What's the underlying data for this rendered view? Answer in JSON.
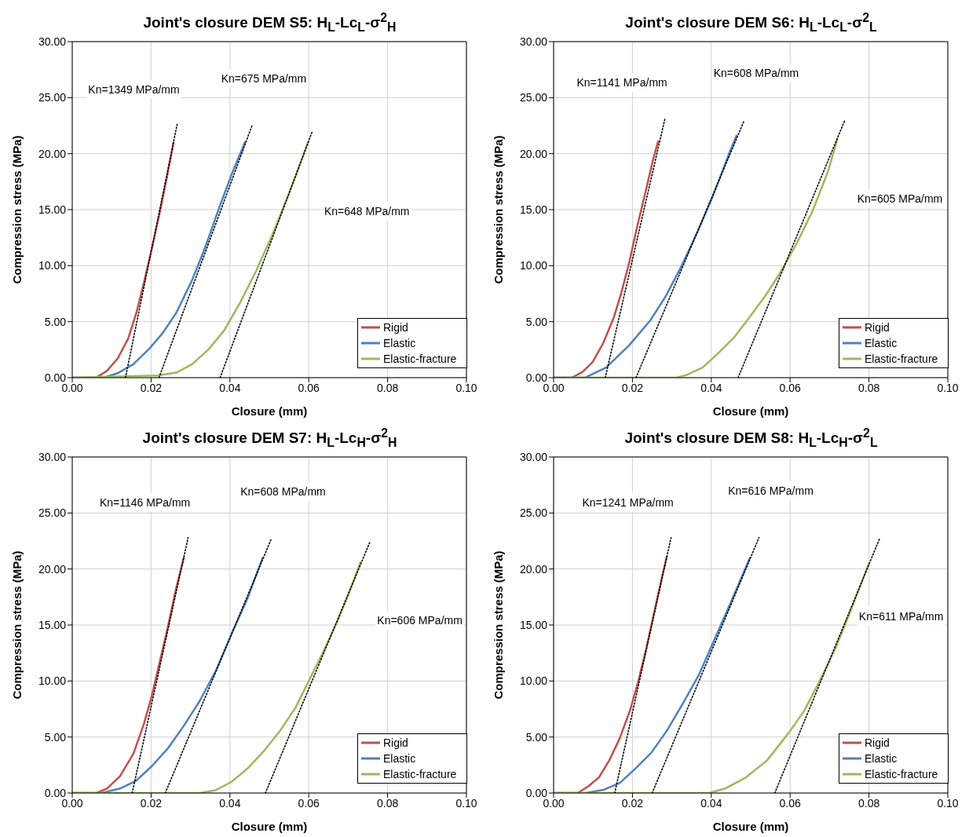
{
  "chart_data": [
    {
      "type": "line",
      "title": "Joint's closure DEM S5: H$_{L}$-Lc$_{L}$-σ$^{2}$$_{H}$",
      "xlabel": "Closure (mm)",
      "ylabel": "Compression stress (MPa)",
      "xlim": [
        0,
        0.1
      ],
      "ylim": [
        0,
        30
      ],
      "xticks": [
        {
          "value": 0,
          "label": "0.00"
        },
        {
          "value": 0.02,
          "label": "0.02"
        },
        {
          "value": 0.04,
          "label": "0.04"
        },
        {
          "value": 0.06,
          "label": "0.06"
        },
        {
          "value": 0.08,
          "label": "0.08"
        },
        {
          "value": 0.1,
          "label": "0.10"
        }
      ],
      "yticks": [
        {
          "value": 0,
          "label": "0.00"
        },
        {
          "value": 5,
          "label": "5.00"
        },
        {
          "value": 10,
          "label": "10.00"
        },
        {
          "value": 15,
          "label": "15.00"
        },
        {
          "value": 20,
          "label": "20.00"
        },
        {
          "value": 25,
          "label": "25.00"
        },
        {
          "value": 30,
          "label": "30.00"
        }
      ],
      "grid": true,
      "legend": "bottom right",
      "marker": "none",
      "series": [
        {
          "name": "Rigid",
          "color": "#c0504d",
          "x": [
            0,
            0.006,
            0.0088,
            0.0115,
            0.0142,
            0.0162,
            0.0182,
            0.0203,
            0.0223,
            0.0243,
            0.0257
          ],
          "values": [
            0,
            0,
            0.6,
            1.7,
            3.5,
            5.7,
            8.5,
            11.7,
            14.9,
            18.4,
            21
          ]
        },
        {
          "name": "Elastic",
          "color": "#4f81bd",
          "x": [
            0,
            0.008,
            0.0115,
            0.0155,
            0.0196,
            0.023,
            0.0264,
            0.0304,
            0.0338,
            0.0372,
            0.0405,
            0.0438
          ],
          "values": [
            0,
            0,
            0.4,
            1.2,
            2.6,
            4,
            5.8,
            8.7,
            11.7,
            15.1,
            18.2,
            21
          ]
        },
        {
          "name": "Elastic-fracture",
          "color": "#9bbb59",
          "x": [
            0,
            0.0216,
            0.0264,
            0.0304,
            0.0345,
            0.0385,
            0.0426,
            0.0466,
            0.0507,
            0.0547,
            0.0574,
            0.0598
          ],
          "values": [
            0,
            0.2,
            0.45,
            1.2,
            2.5,
            4.2,
            6.7,
            9.5,
            12.7,
            16.2,
            18.7,
            21
          ]
        },
        {
          "type": "line",
          "color": "#000000",
          "line_style": "dotted",
          "x": [
            0.0135,
            0.0266
          ],
          "values": [
            0,
            22.6
          ]
        },
        {
          "type": "line",
          "color": "#000000",
          "line_style": "dotted",
          "x": [
            0.022,
            0.0456
          ],
          "values": [
            0,
            22.5
          ]
        },
        {
          "type": "line",
          "color": "#000000",
          "line_style": "dotted",
          "x": [
            0.0375,
            0.0608
          ],
          "values": [
            0,
            21.9
          ]
        }
      ],
      "annotations": [
        "Kn=1349 MPa/mm",
        "Kn=675 MPa/mm",
        "Kn=648 MPa/mm"
      ]
    },
    {
      "type": "line",
      "title": "Joint's closure DEM S6: H$_{L}$-Lc$_{L}$-σ$^{2}$$_{L}$",
      "xlabel": "Closure (mm)",
      "ylabel": "Compression stress (MPa)",
      "xlim": [
        0,
        0.1
      ],
      "ylim": [
        0,
        30
      ],
      "xticks": [
        {
          "value": 0,
          "label": "0.00"
        },
        {
          "value": 0.02,
          "label": "0.02"
        },
        {
          "value": 0.04,
          "label": "0.04"
        },
        {
          "value": 0.06,
          "label": "0.06"
        },
        {
          "value": 0.08,
          "label": "0.08"
        },
        {
          "value": 0.1,
          "label": "0.10"
        }
      ],
      "yticks": [
        {
          "value": 0,
          "label": "0.00"
        },
        {
          "value": 5,
          "label": "5.00"
        },
        {
          "value": 10,
          "label": "10.00"
        },
        {
          "value": 15,
          "label": "15.00"
        },
        {
          "value": 20,
          "label": "20.00"
        },
        {
          "value": 25,
          "label": "25.00"
        },
        {
          "value": 30,
          "label": "30.00"
        }
      ],
      "grid": true,
      "legend": "bottom right",
      "marker": "none",
      "series": [
        {
          "name": "Rigid",
          "color": "#c0504d",
          "x": [
            0,
            0.0046,
            0.0073,
            0.0099,
            0.0126,
            0.0153,
            0.0172,
            0.0192,
            0.0212,
            0.0232,
            0.0252,
            0.0265
          ],
          "values": [
            0,
            0,
            0.5,
            1.4,
            3.1,
            5.4,
            7.6,
            10.3,
            13.5,
            16.4,
            19.4,
            21.1
          ]
        },
        {
          "name": "Elastic",
          "color": "#4f81bd",
          "x": [
            0,
            0.008,
            0.0133,
            0.0192,
            0.0245,
            0.0285,
            0.0325,
            0.0365,
            0.0404,
            0.0444,
            0.0464
          ],
          "values": [
            0,
            0,
            0.9,
            2.9,
            5.1,
            7.3,
            10,
            13,
            16.2,
            19.9,
            21.6
          ]
        },
        {
          "name": "Elastic-fracture",
          "color": "#9bbb59",
          "x": [
            0,
            0.0312,
            0.0338,
            0.0378,
            0.0418,
            0.0458,
            0.0497,
            0.0537,
            0.0577,
            0.0617,
            0.0657,
            0.0696,
            0.072
          ],
          "values": [
            0,
            0,
            0.25,
            0.9,
            2.2,
            3.6,
            5.4,
            7.3,
            9.5,
            12,
            14.9,
            18.4,
            21.3
          ]
        },
        {
          "type": "line",
          "color": "#000000",
          "line_style": "dotted",
          "x": [
            0.0131,
            0.0283
          ],
          "values": [
            0,
            23.2
          ]
        },
        {
          "type": "line",
          "color": "#000000",
          "line_style": "dotted",
          "x": [
            0.0209,
            0.0484
          ],
          "values": [
            0,
            23
          ]
        },
        {
          "type": "line",
          "color": "#000000",
          "line_style": "dotted",
          "x": [
            0.0468,
            0.0739
          ],
          "values": [
            0,
            23
          ]
        }
      ],
      "annotations": [
        "Kn=1141 MPa/mm",
        "Kn=608 MPa/mm",
        "Kn=605 MPa/mm"
      ]
    },
    {
      "type": "line",
      "title": "Joint's closure DEM S7: H$_{L}$-Lc$_{H}$-σ$^{2}$$_{H}$",
      "xlabel": "Closure (mm)",
      "ylabel": "Compression stress (MPa)",
      "xlim": [
        0,
        0.1
      ],
      "ylim": [
        0,
        30
      ],
      "xticks": [
        {
          "value": 0,
          "label": "0.00"
        },
        {
          "value": 0.02,
          "label": "0.02"
        },
        {
          "value": 0.04,
          "label": "0.04"
        },
        {
          "value": 0.06,
          "label": "0.06"
        },
        {
          "value": 0.08,
          "label": "0.08"
        },
        {
          "value": 0.1,
          "label": "0.10"
        }
      ],
      "yticks": [
        {
          "value": 0,
          "label": "0.00"
        },
        {
          "value": 5,
          "label": "5.00"
        },
        {
          "value": 10,
          "label": "10.00"
        },
        {
          "value": 15,
          "label": "15.00"
        },
        {
          "value": 20,
          "label": "20.00"
        },
        {
          "value": 25,
          "label": "25.00"
        },
        {
          "value": 30,
          "label": "30.00"
        }
      ],
      "grid": true,
      "legend": "bottom right",
      "marker": "none",
      "series": [
        {
          "name": "Rigid",
          "color": "#c0504d",
          "x": [
            0,
            0.0061,
            0.0088,
            0.0121,
            0.0155,
            0.0182,
            0.0202,
            0.0222,
            0.0243,
            0.0263,
            0.0283
          ],
          "values": [
            0,
            0,
            0.4,
            1.5,
            3.5,
            6.2,
            8.7,
            11.7,
            14.9,
            18.2,
            21
          ]
        },
        {
          "name": "Elastic",
          "color": "#4f81bd",
          "x": [
            0,
            0.0074,
            0.0121,
            0.0162,
            0.0202,
            0.0243,
            0.0283,
            0.0323,
            0.0364,
            0.0404,
            0.0445,
            0.0483
          ],
          "values": [
            0,
            0,
            0.4,
            1.1,
            2.4,
            4,
            6,
            8.2,
            10.9,
            14.2,
            17.4,
            21
          ]
        },
        {
          "name": "Elastic-fracture",
          "color": "#9bbb59",
          "x": [
            0,
            0.0323,
            0.0364,
            0.0404,
            0.0445,
            0.0485,
            0.0526,
            0.0566,
            0.06,
            0.0634,
            0.0674,
            0.0708,
            0.0731
          ],
          "values": [
            0,
            0,
            0.25,
            1,
            2.2,
            3.7,
            5.5,
            7.6,
            10,
            12.4,
            15.4,
            18.4,
            20.6
          ]
        },
        {
          "type": "line",
          "color": "#000000",
          "line_style": "dotted",
          "x": [
            0.0152,
            0.0294
          ],
          "values": [
            0,
            22.8
          ]
        },
        {
          "type": "line",
          "color": "#000000",
          "line_style": "dotted",
          "x": [
            0.0236,
            0.0505
          ],
          "values": [
            0,
            22.7
          ]
        },
        {
          "type": "line",
          "color": "#000000",
          "line_style": "dotted",
          "x": [
            0.049,
            0.0755
          ],
          "values": [
            0,
            22.4
          ]
        }
      ],
      "annotations": [
        "Kn=1146 MPa/mm",
        "Kn=608 MPa/mm",
        "Kn=606 MPa/mm"
      ]
    },
    {
      "type": "line",
      "title": "Joint's closure DEM S8: H$_{L}$-Lc$_{H}$-σ$^{2}$$_{L}$",
      "xlabel": "Closure (mm)",
      "ylabel": "Compression stress (MPa)",
      "xlim": [
        0,
        0.1
      ],
      "ylim": [
        0,
        30
      ],
      "xticks": [
        {
          "value": 0,
          "label": "0.00"
        },
        {
          "value": 0.02,
          "label": "0.02"
        },
        {
          "value": 0.04,
          "label": "0.04"
        },
        {
          "value": 0.06,
          "label": "0.06"
        },
        {
          "value": 0.08,
          "label": "0.08"
        },
        {
          "value": 0.1,
          "label": "0.10"
        }
      ],
      "yticks": [
        {
          "value": 0,
          "label": "0.00"
        },
        {
          "value": 5,
          "label": "5.00"
        },
        {
          "value": 10,
          "label": "10.00"
        },
        {
          "value": 15,
          "label": "15.00"
        },
        {
          "value": 20,
          "label": "20.00"
        },
        {
          "value": 25,
          "label": "25.00"
        },
        {
          "value": 30,
          "label": "30.00"
        }
      ],
      "grid": true,
      "legend": "bottom right",
      "marker": "none",
      "series": [
        {
          "name": "Rigid",
          "color": "#c0504d",
          "x": [
            0,
            0.0061,
            0.0088,
            0.0115,
            0.0141,
            0.0168,
            0.0195,
            0.0215,
            0.0235,
            0.0255,
            0.0275,
            0.0287
          ],
          "values": [
            0,
            0,
            0.6,
            1.4,
            2.9,
            4.9,
            7.5,
            10,
            12.9,
            16.1,
            19.3,
            21.1
          ]
        },
        {
          "name": "Elastic",
          "color": "#4f81bd",
          "x": [
            0,
            0.0081,
            0.0128,
            0.0168,
            0.0208,
            0.0248,
            0.0288,
            0.0328,
            0.0368,
            0.0408,
            0.0448,
            0.0498
          ],
          "values": [
            0,
            0,
            0.3,
            0.9,
            2.2,
            3.6,
            5.6,
            8,
            10.5,
            13.7,
            16.9,
            21
          ]
        },
        {
          "name": "Elastic-fracture",
          "color": "#9bbb59",
          "x": [
            0,
            0.0395,
            0.0435,
            0.0488,
            0.0541,
            0.0595,
            0.0635,
            0.0675,
            0.0715,
            0.0755,
            0.08
          ],
          "values": [
            0,
            0,
            0.4,
            1.4,
            2.9,
            5.3,
            7.3,
            10,
            12.9,
            16.4,
            20.5
          ]
        },
        {
          "type": "line",
          "color": "#000000",
          "line_style": "dotted",
          "x": [
            0.0155,
            0.0298
          ],
          "values": [
            0,
            22.8
          ]
        },
        {
          "type": "line",
          "color": "#000000",
          "line_style": "dotted",
          "x": [
            0.025,
            0.0521
          ],
          "values": [
            0,
            22.8
          ]
        },
        {
          "type": "line",
          "color": "#000000",
          "line_style": "dotted",
          "x": [
            0.0561,
            0.0828
          ],
          "values": [
            0,
            22.8
          ]
        }
      ],
      "annotations": [
        "Kn=1241 MPa/mm",
        "Kn=616 MPa/mm",
        "Kn=611 MPa/mm"
      ]
    }
  ]
}
